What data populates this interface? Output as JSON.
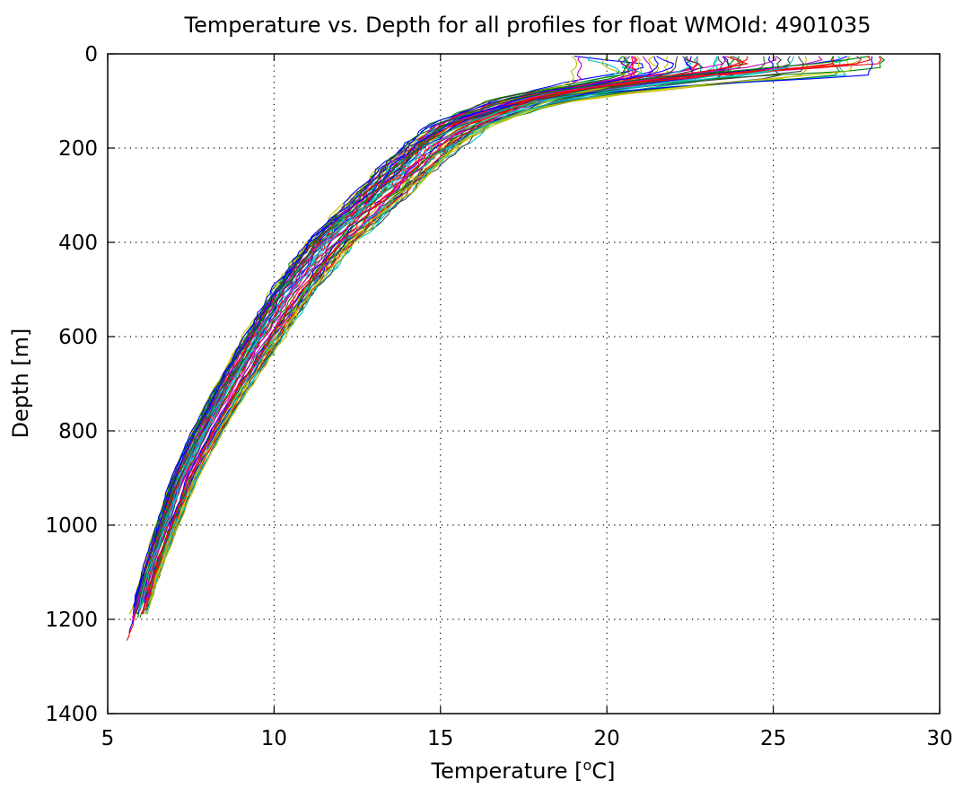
{
  "chart_data": {
    "type": "line",
    "title": "Temperature vs. Depth for all profiles for float WMOId: 4901035",
    "xlabel": {
      "prefix": "Temperature [",
      "superscript": "o",
      "suffix": "C]"
    },
    "ylabel": "Depth [m]",
    "xlim": [
      5,
      30
    ],
    "ylim": [
      0,
      1400
    ],
    "y_inverted": true,
    "grid": true,
    "x_ticks": [
      "5",
      "10",
      "15",
      "20",
      "25",
      "30"
    ],
    "y_ticks": [
      "0",
      "200",
      "400",
      "600",
      "800",
      "1000",
      "1200",
      "1400"
    ],
    "series_count": 60,
    "colors": [
      "#0000ff",
      "#008000",
      "#ff0000",
      "#00bfbf",
      "#bf00bf",
      "#bfbf00",
      "#404040"
    ],
    "representative_profile": {
      "depth": [
        5,
        20,
        40,
        60,
        80,
        100,
        150,
        200,
        250,
        300,
        400,
        500,
        600,
        700,
        800,
        900,
        1000,
        1100,
        1200
      ],
      "temperature": [
        24.5,
        24.0,
        21.5,
        19.5,
        18.0,
        17.0,
        15.5,
        14.6,
        13.9,
        13.2,
        11.7,
        10.6,
        9.7,
        8.8,
        8.0,
        7.3,
        6.8,
        6.3,
        5.9
      ]
    },
    "profile_depth_range": [
      5,
      1250
    ],
    "surface_temperature_range": [
      18.5,
      28.2
    ],
    "bottom_temperature_range": [
      5.4,
      6.4
    ]
  }
}
